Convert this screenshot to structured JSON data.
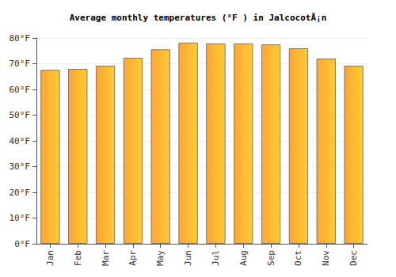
{
  "chart_data": {
    "type": "bar",
    "title": "Average monthly temperatures (°F ) in JalcocotÃ¡n",
    "categories": [
      "Jan",
      "Feb",
      "Mar",
      "Apr",
      "May",
      "Jun",
      "Jul",
      "Aug",
      "Sep",
      "Oct",
      "Nov",
      "Dec"
    ],
    "values": [
      67.6,
      68.0,
      69.2,
      72.3,
      75.6,
      78.2,
      77.9,
      77.9,
      77.5,
      76.0,
      72.0,
      69.2
    ],
    "color": "#ffa535",
    "ylim": [
      0,
      80
    ],
    "yticks": [
      {
        "value": 0,
        "label": "0°F"
      },
      {
        "value": 10,
        "label": "10°F"
      },
      {
        "value": 20,
        "label": "20°F"
      },
      {
        "value": 30,
        "label": "30°F"
      },
      {
        "value": 40,
        "label": "40°F"
      },
      {
        "value": 50,
        "label": "50°F"
      },
      {
        "value": 60,
        "label": "60°F"
      },
      {
        "value": 70,
        "label": "70°F"
      },
      {
        "value": 80,
        "label": "80°F"
      }
    ],
    "grid": true
  }
}
